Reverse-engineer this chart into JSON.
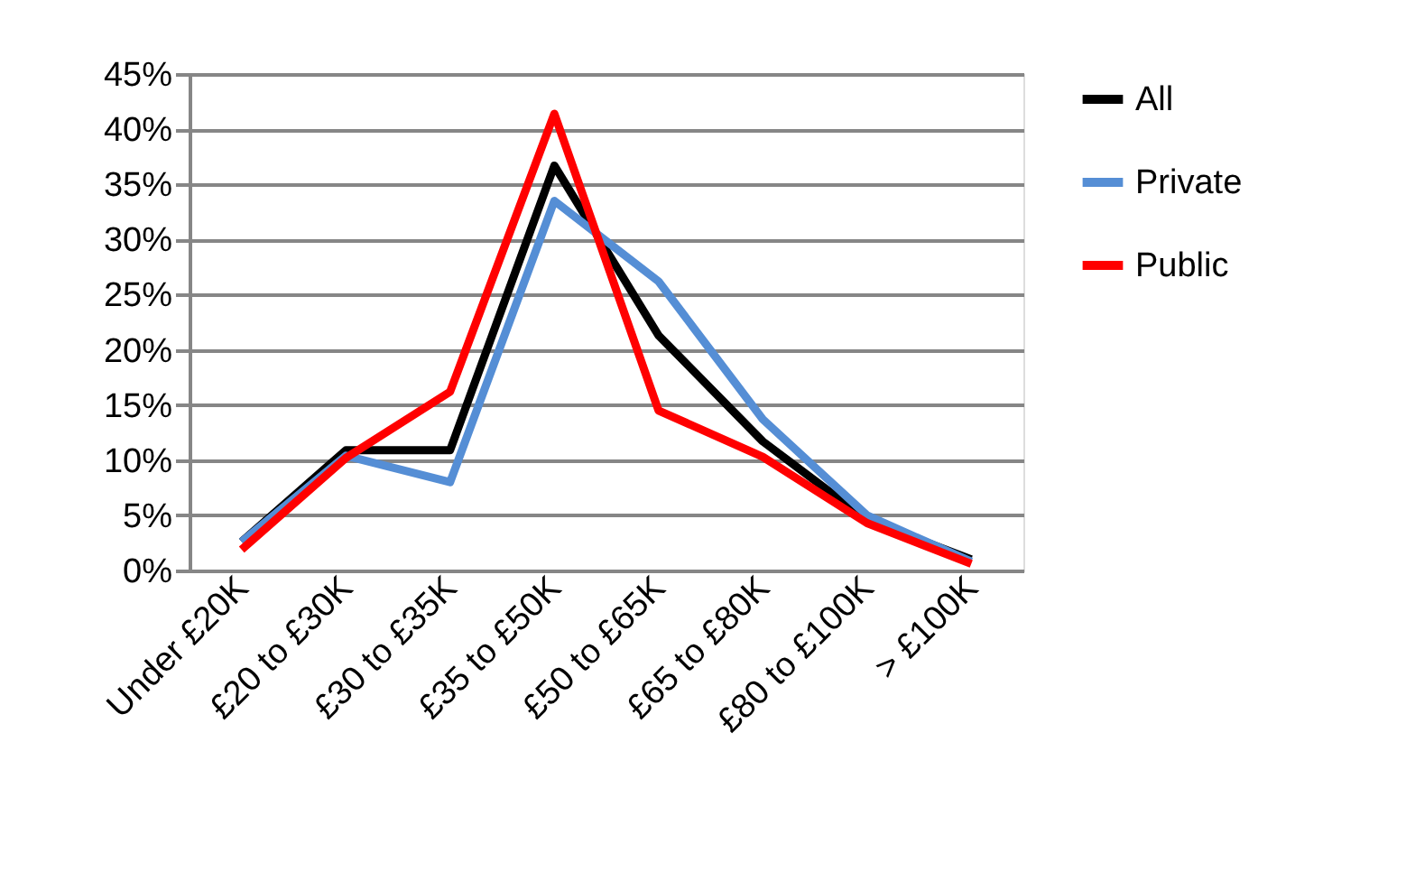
{
  "chart_data": {
    "type": "line",
    "categories": [
      "Under £20K",
      "£20 to £30K",
      "£30 to £35K",
      "£35 to £50K",
      "£50 to £65K",
      "£65 to £80K",
      "£80 to £100K",
      "> £100K"
    ],
    "series": [
      {
        "name": "All",
        "color": "#000000",
        "values": [
          2.6,
          10.9,
          10.9,
          36.7,
          21.3,
          11.7,
          4.6,
          1.0
        ]
      },
      {
        "name": "Private",
        "color": "#558ed5",
        "values": [
          2.6,
          10.4,
          8.0,
          33.5,
          26.2,
          13.7,
          5.0,
          0.8
        ]
      },
      {
        "name": "Public",
        "color": "#ff0000",
        "values": [
          1.9,
          10.2,
          16.2,
          41.4,
          14.5,
          10.3,
          4.3,
          0.6
        ]
      }
    ],
    "ylim": [
      0,
      45
    ],
    "yticks": [
      {
        "value": 0,
        "label": "0%"
      },
      {
        "value": 5,
        "label": "5%"
      },
      {
        "value": 10,
        "label": "10%"
      },
      {
        "value": 15,
        "label": "15%"
      },
      {
        "value": 20,
        "label": "20%"
      },
      {
        "value": 25,
        "label": "25%"
      },
      {
        "value": 30,
        "label": "30%"
      },
      {
        "value": 35,
        "label": "35%"
      },
      {
        "value": 40,
        "label": "40%"
      },
      {
        "value": 45,
        "label": "45%"
      }
    ],
    "grid": "y",
    "legend": "right",
    "marker": "none",
    "line_style": "solid"
  }
}
